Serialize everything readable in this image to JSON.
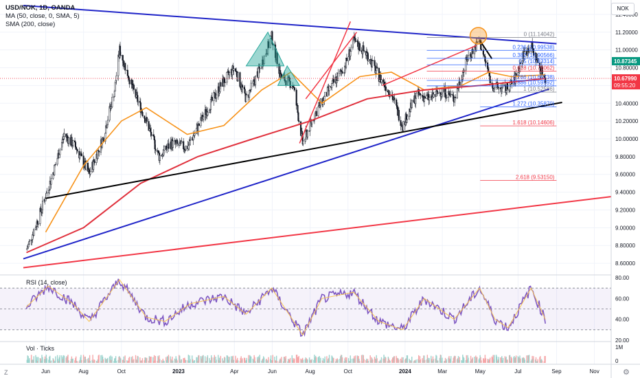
{
  "legend": {
    "symbol": "USD/NOK, 1D, OANDA",
    "ma": "MA (50, close, 0, SMA, 5)",
    "sma": "SMA (200, close)"
  },
  "currency_button": "NOK",
  "rsi_label": "RSI (14, close)",
  "vol_label": "Vol · Ticks",
  "corner_left": "Z",
  "corner_right": "⚙",
  "colors": {
    "up": "#131722",
    "down": "#131722",
    "ma50": "#f7931a",
    "sma200": "#e0303c",
    "trend_blue": "#1f24c8",
    "trend_black": "#000000",
    "trend_red": "#f23645",
    "rsi": "#7e57c2",
    "triangle": "#26a69a"
  },
  "chart_data": [
    {
      "type": "candlestick",
      "symbol": "USD/NOK",
      "timeframe": "1D",
      "source": "OANDA",
      "ylim": [
        8.5,
        11.5
      ],
      "y_ticks": [
        "11.40000",
        "11.20000",
        "11.00000",
        "10.80000",
        "10.60000",
        "10.40000",
        "10.20000",
        "10.00000",
        "9.80000",
        "9.60000",
        "9.40000",
        "9.20000",
        "9.00000",
        "8.80000",
        "8.60000"
      ],
      "x_ticks": [
        "Jun",
        "Aug",
        "Oct",
        "2023",
        "Apr",
        "Jun",
        "Aug",
        "Oct",
        "2024",
        "Mar",
        "May",
        "Jul",
        "Sep",
        "Nov"
      ],
      "price_path": [
        {
          "date": "2022-05-01",
          "close": 8.75
        },
        {
          "date": "2022-05-20",
          "close": 9.1
        },
        {
          "date": "2022-06-10",
          "close": 9.55
        },
        {
          "date": "2022-07-01",
          "close": 10.05
        },
        {
          "date": "2022-07-20",
          "close": 9.9
        },
        {
          "date": "2022-08-10",
          "close": 9.6
        },
        {
          "date": "2022-09-01",
          "close": 10.0
        },
        {
          "date": "2022-09-20",
          "close": 10.55
        },
        {
          "date": "2022-09-28",
          "close": 11.0
        },
        {
          "date": "2022-10-20",
          "close": 10.55
        },
        {
          "date": "2022-11-10",
          "close": 10.2
        },
        {
          "date": "2022-12-01",
          "close": 9.8
        },
        {
          "date": "2022-12-20",
          "close": 9.95
        },
        {
          "date": "2023-01-15",
          "close": 9.9
        },
        {
          "date": "2023-02-10",
          "close": 10.25
        },
        {
          "date": "2023-03-10",
          "close": 10.6
        },
        {
          "date": "2023-04-01",
          "close": 10.8
        },
        {
          "date": "2023-04-20",
          "close": 10.45
        },
        {
          "date": "2023-05-10",
          "close": 10.75
        },
        {
          "date": "2023-05-31",
          "close": 11.15
        },
        {
          "date": "2023-06-15",
          "close": 10.7
        },
        {
          "date": "2023-07-05",
          "close": 10.6
        },
        {
          "date": "2023-07-20",
          "close": 9.95
        },
        {
          "date": "2023-08-10",
          "close": 10.3
        },
        {
          "date": "2023-09-05",
          "close": 10.6
        },
        {
          "date": "2023-09-25",
          "close": 10.8
        },
        {
          "date": "2023-10-10",
          "close": 11.1
        },
        {
          "date": "2023-11-01",
          "close": 10.95
        },
        {
          "date": "2023-11-20",
          "close": 10.7
        },
        {
          "date": "2023-12-10",
          "close": 10.5
        },
        {
          "date": "2023-12-28",
          "close": 10.15
        },
        {
          "date": "2024-01-20",
          "close": 10.5
        },
        {
          "date": "2024-02-10",
          "close": 10.45
        },
        {
          "date": "2024-03-01",
          "close": 10.55
        },
        {
          "date": "2024-03-20",
          "close": 10.45
        },
        {
          "date": "2024-04-10",
          "close": 10.9
        },
        {
          "date": "2024-04-30",
          "close": 11.1
        },
        {
          "date": "2024-05-20",
          "close": 10.6
        },
        {
          "date": "2024-06-10",
          "close": 10.55
        },
        {
          "date": "2024-06-25",
          "close": 10.65
        },
        {
          "date": "2024-07-10",
          "close": 10.95
        },
        {
          "date": "2024-07-22",
          "close": 11.05
        },
        {
          "date": "2024-08-05",
          "close": 10.8
        },
        {
          "date": "2024-08-14",
          "close": 10.68
        }
      ],
      "ma50_path": [
        {
          "date": "2022-06-01",
          "value": 8.95
        },
        {
          "date": "2022-08-01",
          "value": 9.7
        },
        {
          "date": "2022-10-01",
          "value": 10.2
        },
        {
          "date": "2022-11-10",
          "value": 10.35
        },
        {
          "date": "2023-01-15",
          "value": 10.05
        },
        {
          "date": "2023-03-15",
          "value": 10.15
        },
        {
          "date": "2023-05-15",
          "value": 10.55
        },
        {
          "date": "2023-07-01",
          "value": 10.75
        },
        {
          "date": "2023-08-20",
          "value": 10.4
        },
        {
          "date": "2023-10-20",
          "value": 10.7
        },
        {
          "date": "2023-12-10",
          "value": 10.75
        },
        {
          "date": "2024-02-01",
          "value": 10.55
        },
        {
          "date": "2024-04-01",
          "value": 10.6
        },
        {
          "date": "2024-05-15",
          "value": 10.75
        },
        {
          "date": "2024-06-20",
          "value": 10.7
        },
        {
          "date": "2024-08-14",
          "value": 10.72
        }
      ],
      "sma200_path": [
        {
          "date": "2022-05-01",
          "value": 8.72
        },
        {
          "date": "2022-08-01",
          "value": 9.0
        },
        {
          "date": "2022-11-01",
          "value": 9.5
        },
        {
          "date": "2023-02-01",
          "value": 9.8
        },
        {
          "date": "2023-05-01",
          "value": 10.0
        },
        {
          "date": "2023-08-01",
          "value": 10.2
        },
        {
          "date": "2023-11-01",
          "value": 10.45
        },
        {
          "date": "2024-02-01",
          "value": 10.55
        },
        {
          "date": "2024-05-01",
          "value": 10.6
        },
        {
          "date": "2024-08-14",
          "value": 10.68
        }
      ]
    },
    {
      "type": "fibonacci",
      "levels": [
        {
          "ratio": "0",
          "value": "11.14042",
          "color": "#787b86"
        },
        {
          "ratio": "0.236",
          "value": "10.99538",
          "color": "#2962ff"
        },
        {
          "ratio": "0.382",
          "value": "10.90566",
          "color": "#2962ff"
        },
        {
          "ratio": "0.5",
          "value": "10.83314",
          "color": "#2962ff"
        },
        {
          "ratio": "0.618",
          "value": "10.76062",
          "color": "#f23645"
        },
        {
          "ratio": "0.786",
          "value": "10.65738",
          "color": "#2962ff"
        },
        {
          "ratio": "0.886",
          "value": "10.59592",
          "color": "#2962ff"
        },
        {
          "ratio": "1",
          "value": "10.52586",
          "color": "#787b86"
        },
        {
          "ratio": "1.272",
          "value": "10.35870",
          "color": "#2962ff"
        },
        {
          "ratio": "1.618",
          "value": "10.14606",
          "color": "#f23645"
        },
        {
          "ratio": "2.618",
          "value": "9.53150",
          "color": "#f23645"
        }
      ]
    },
    {
      "type": "price_labels",
      "labels": [
        {
          "value": "10.87345",
          "bg": "#089981"
        },
        {
          "value": "10.67990",
          "time": "09:55:20",
          "bg": "#f23645"
        }
      ]
    },
    {
      "type": "line",
      "name": "RSI (14, close)",
      "ylim": [
        20,
        80
      ],
      "y_ticks": [
        "80.00",
        "60.00",
        "40.00",
        "20.00"
      ],
      "bands": [
        30,
        50,
        70
      ],
      "path": [
        {
          "date": "2022-05-01",
          "value": 52
        },
        {
          "date": "2022-06-05",
          "value": 72
        },
        {
          "date": "2022-07-15",
          "value": 55
        },
        {
          "date": "2022-08-10",
          "value": 38
        },
        {
          "date": "2022-09-28",
          "value": 78
        },
        {
          "date": "2022-11-10",
          "value": 42
        },
        {
          "date": "2022-12-10",
          "value": 38
        },
        {
          "date": "2023-01-20",
          "value": 55
        },
        {
          "date": "2023-03-15",
          "value": 62
        },
        {
          "date": "2023-04-20",
          "value": 45
        },
        {
          "date": "2023-05-31",
          "value": 70
        },
        {
          "date": "2023-07-20",
          "value": 25
        },
        {
          "date": "2023-08-20",
          "value": 60
        },
        {
          "date": "2023-10-10",
          "value": 66
        },
        {
          "date": "2023-11-20",
          "value": 38
        },
        {
          "date": "2023-12-28",
          "value": 30
        },
        {
          "date": "2024-02-01",
          "value": 60
        },
        {
          "date": "2024-03-20",
          "value": 40
        },
        {
          "date": "2024-04-30",
          "value": 70
        },
        {
          "date": "2024-05-25",
          "value": 40
        },
        {
          "date": "2024-06-15",
          "value": 32
        },
        {
          "date": "2024-07-22",
          "value": 70
        },
        {
          "date": "2024-08-14",
          "value": 40
        }
      ]
    },
    {
      "type": "bar",
      "name": "Vol · Ticks",
      "y_ticks": [
        "1M",
        "0"
      ]
    }
  ]
}
